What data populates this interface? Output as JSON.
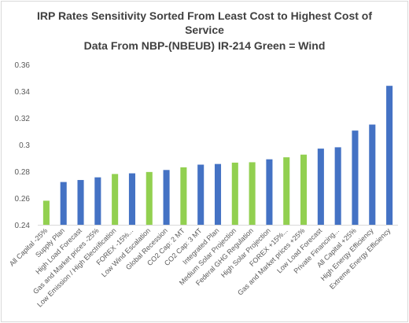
{
  "chart_data": {
    "type": "bar",
    "title_line1": "IRP Rates Sensitivity Sorted From Least Cost to Highest Cost of",
    "title_line2": "Service",
    "subtitle": "Data From NBP-(NBEUB) IR-214  Green = Wind",
    "ylim": [
      0.24,
      0.36
    ],
    "yticks": [
      "0.24",
      "0.26",
      "0.28",
      "0.3",
      "0.32",
      "0.34",
      "0.36"
    ],
    "ytick_values": [
      0.24,
      0.26,
      0.28,
      0.3,
      0.32,
      0.34,
      0.36
    ],
    "grid": false,
    "legend": "none",
    "colors": {
      "wind": "#92d050",
      "other": "#4472c4"
    },
    "bars": [
      {
        "label": "All Capital -25%",
        "value": 0.258,
        "group": "wind"
      },
      {
        "label": "Supply Plan",
        "value": 0.272,
        "group": "other"
      },
      {
        "label": "High Load Forecast",
        "value": 0.2735,
        "group": "other"
      },
      {
        "label": "Gas and Market prices -25%",
        "value": 0.2755,
        "group": "other"
      },
      {
        "label": "Low Emission / High Electrification",
        "value": 0.278,
        "group": "wind"
      },
      {
        "label": "FOREX -15%...",
        "value": 0.2785,
        "group": "other"
      },
      {
        "label": "Low Wind Escalation",
        "value": 0.2795,
        "group": "wind"
      },
      {
        "label": "Global Recession",
        "value": 0.281,
        "group": "other"
      },
      {
        "label": "CO2 Cap: 2 MT",
        "value": 0.283,
        "group": "wind"
      },
      {
        "label": "CO2 Cap: 3 MT",
        "value": 0.285,
        "group": "other"
      },
      {
        "label": "Integrated Plan",
        "value": 0.2855,
        "group": "other"
      },
      {
        "label": "Medium Solar Projection",
        "value": 0.2865,
        "group": "wind"
      },
      {
        "label": "Federal GHG Regulation",
        "value": 0.2868,
        "group": "wind"
      },
      {
        "label": "High Solar Projection",
        "value": 0.289,
        "group": "other"
      },
      {
        "label": "FOREX +15%...",
        "value": 0.2905,
        "group": "wind"
      },
      {
        "label": "Gas and Market prices +25%",
        "value": 0.2925,
        "group": "wind"
      },
      {
        "label": "Low Load Forecast",
        "value": 0.297,
        "group": "other"
      },
      {
        "label": "Private Financing...",
        "value": 0.298,
        "group": "other"
      },
      {
        "label": "All Capital +25%",
        "value": 0.3105,
        "group": "other"
      },
      {
        "label": "High Energy Efficiency",
        "value": 0.315,
        "group": "other"
      },
      {
        "label": "Extreme Energy Efficiency",
        "value": 0.344,
        "group": "other"
      }
    ]
  }
}
